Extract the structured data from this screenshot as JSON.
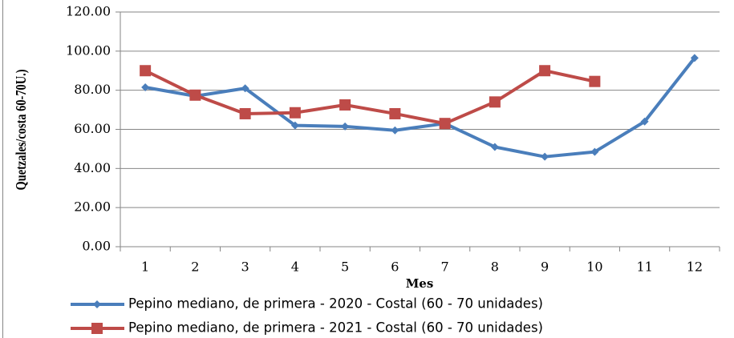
{
  "chart_data": {
    "type": "line",
    "x_label": "Mes",
    "y_label": "Quetzales/costa 60-70U.)",
    "categories": [
      "1",
      "2",
      "3",
      "4",
      "5",
      "6",
      "7",
      "8",
      "9",
      "10",
      "11",
      "12"
    ],
    "series": [
      {
        "name": "Pepino mediano, de primera - 2020 - Costal (60 - 70 unidades)",
        "color": "#4a7ebb",
        "marker": "diamond",
        "values": [
          81.5,
          77,
          81,
          62,
          61.5,
          59.5,
          63,
          51,
          46,
          48.5,
          64,
          96.5
        ]
      },
      {
        "name": "Pepino mediano, de primera - 2021 - Costal (60 - 70 unidades)",
        "color": "#be4b48",
        "marker": "square",
        "values": [
          90,
          77.5,
          68,
          68.5,
          72.5,
          68,
          63,
          74,
          90,
          84.5,
          null,
          null
        ]
      }
    ],
    "ylim": [
      0,
      120
    ],
    "yticks": [
      {
        "value": 0,
        "label": "0.00"
      },
      {
        "value": 20,
        "label": "20.00"
      },
      {
        "value": 40,
        "label": "40.00"
      },
      {
        "value": 60,
        "label": "60.00"
      },
      {
        "value": 80,
        "label": "80.00"
      },
      {
        "value": 100,
        "label": "100.00"
      },
      {
        "value": 120,
        "label": "120.00"
      }
    ],
    "grid": true,
    "legend": "bottom"
  }
}
